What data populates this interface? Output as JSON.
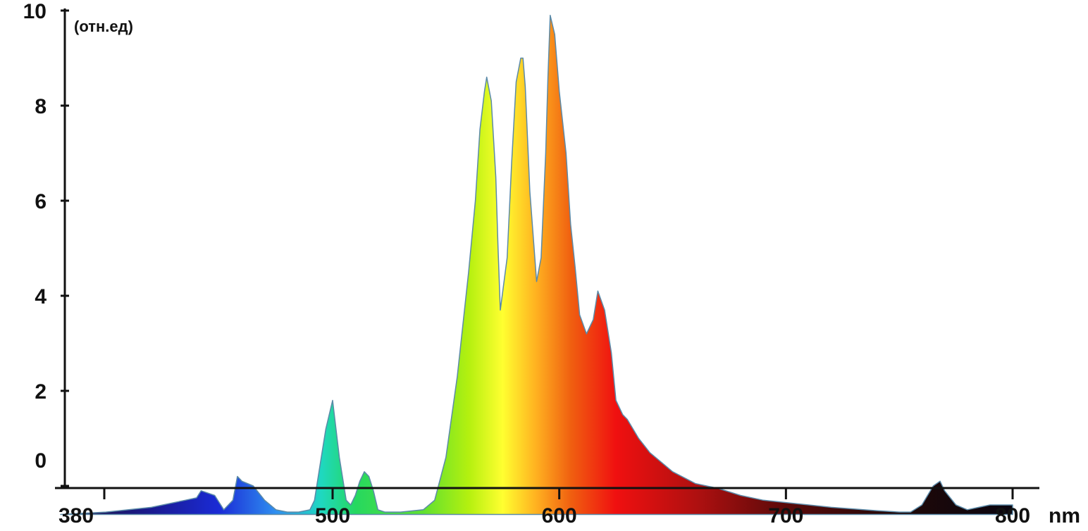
{
  "chart_data": {
    "type": "area",
    "title": "",
    "ylabel": "(отн.ед)",
    "xlabel": "nm",
    "xlim": [
      380,
      800
    ],
    "ylim": [
      -0.6,
      10
    ],
    "grid": false,
    "legend": "none",
    "x_ticks": [
      380,
      500,
      600,
      700,
      800
    ],
    "x_tick_labels": [
      "380",
      "500",
      "600",
      "700",
      "800"
    ],
    "y_ticks": [
      0,
      2,
      4,
      6,
      8,
      10
    ],
    "y_tick_labels": [
      "0",
      "2",
      "4",
      "6",
      "8",
      "10"
    ],
    "series": [
      {
        "x": [
          380,
          400,
          420,
          435,
          440,
          442,
          448,
          452,
          456,
          458,
          460,
          465,
          470,
          475,
          480,
          485,
          490,
          492,
          495,
          497,
          500,
          503,
          506,
          508,
          510,
          512,
          514,
          516,
          518,
          520,
          523,
          530,
          540,
          545,
          550,
          555,
          560,
          563,
          565,
          567,
          568,
          570,
          572,
          573,
          574,
          577,
          579,
          581,
          583,
          584,
          585,
          587,
          590,
          592,
          594,
          595,
          596,
          598,
          600,
          603,
          605,
          607,
          609,
          612,
          615,
          617,
          620,
          623,
          625,
          628,
          630,
          635,
          640,
          650,
          660,
          670,
          680,
          690,
          700,
          720,
          740,
          750,
          755,
          760,
          765,
          768,
          770,
          775,
          780,
          790,
          800
        ],
        "y": [
          -0.6,
          -0.55,
          -0.45,
          -0.3,
          -0.25,
          -0.1,
          -0.2,
          -0.5,
          -0.3,
          0.2,
          0.1,
          0.0,
          -0.3,
          -0.5,
          -0.55,
          -0.55,
          -0.5,
          -0.3,
          0.6,
          1.2,
          1.8,
          0.6,
          -0.3,
          -0.4,
          -0.2,
          0.1,
          0.3,
          0.2,
          -0.1,
          -0.5,
          -0.55,
          -0.55,
          -0.5,
          -0.3,
          0.6,
          2.3,
          4.5,
          6.0,
          7.5,
          8.3,
          8.6,
          8.1,
          6.5,
          5.0,
          3.7,
          4.8,
          6.8,
          8.5,
          9.0,
          9.0,
          8.4,
          6.2,
          4.3,
          4.8,
          7.0,
          8.6,
          9.9,
          9.5,
          8.3,
          7.0,
          5.5,
          4.6,
          3.6,
          3.2,
          3.5,
          4.1,
          3.7,
          2.8,
          1.8,
          1.5,
          1.4,
          1.0,
          0.7,
          0.3,
          0.05,
          -0.05,
          -0.2,
          -0.3,
          -0.35,
          -0.45,
          -0.52,
          -0.55,
          -0.55,
          -0.4,
          0.0,
          0.1,
          -0.1,
          -0.4,
          -0.5,
          -0.4,
          -0.4
        ]
      }
    ],
    "colors": {
      "axis": "#111111",
      "text": "#111111",
      "outline": "#5b8aa8",
      "spectrum_stops": [
        {
          "nm": 380,
          "color": "#1a1236"
        },
        {
          "nm": 420,
          "color": "#1a1a8f"
        },
        {
          "nm": 450,
          "color": "#1a2bd6"
        },
        {
          "nm": 475,
          "color": "#2f8ff0"
        },
        {
          "nm": 495,
          "color": "#1fd8c0"
        },
        {
          "nm": 510,
          "color": "#25d860"
        },
        {
          "nm": 540,
          "color": "#60e030"
        },
        {
          "nm": 560,
          "color": "#b4f00f"
        },
        {
          "nm": 575,
          "color": "#ffff30"
        },
        {
          "nm": 590,
          "color": "#ffb020"
        },
        {
          "nm": 605,
          "color": "#f06010"
        },
        {
          "nm": 625,
          "color": "#f01010"
        },
        {
          "nm": 660,
          "color": "#b01010"
        },
        {
          "nm": 700,
          "color": "#5a0a0a"
        },
        {
          "nm": 750,
          "color": "#200808"
        },
        {
          "nm": 800,
          "color": "#0a0610"
        }
      ]
    }
  }
}
